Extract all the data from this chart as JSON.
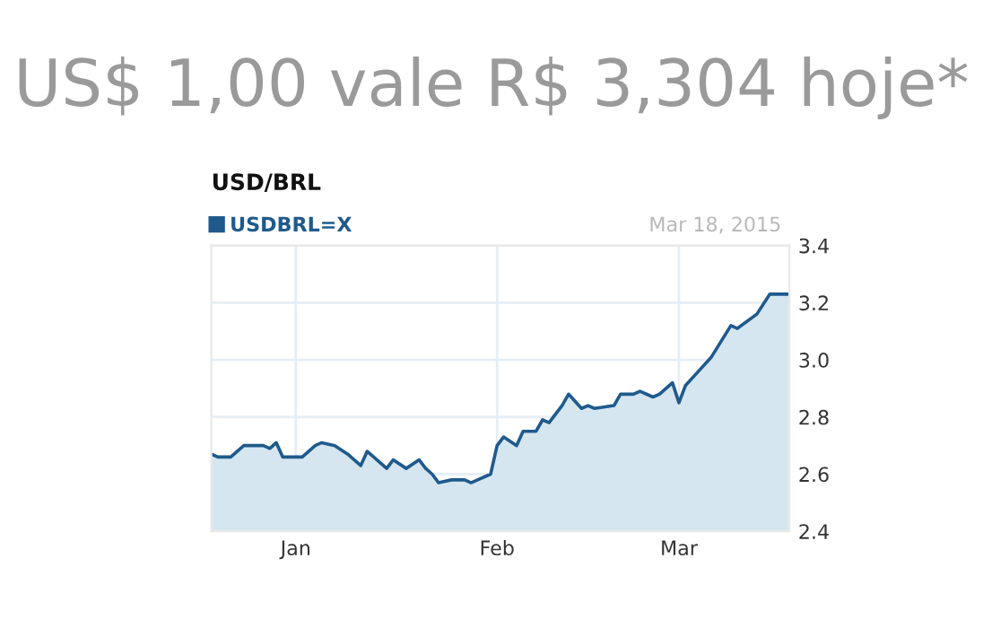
{
  "chart_data": {
    "type": "area",
    "title": "US$ 1,00 vale R$ 3,304 hoje*",
    "subtitle": "USD/BRL",
    "annotations": [
      "Mar 18, 2015"
    ],
    "x": [
      "2014-12-19",
      "2014-12-20",
      "2014-12-22",
      "2014-12-24",
      "2014-12-26",
      "2014-12-27",
      "2014-12-28",
      "2014-12-29",
      "2014-12-30",
      "2015-01-02",
      "2015-01-04",
      "2015-01-05",
      "2015-01-07",
      "2015-01-09",
      "2015-01-11",
      "2015-01-12",
      "2015-01-15",
      "2015-01-16",
      "2015-01-18",
      "2015-01-20",
      "2015-01-21",
      "2015-01-22",
      "2015-01-23",
      "2015-01-25",
      "2015-01-27",
      "2015-01-28",
      "2015-01-29",
      "2015-01-31",
      "2015-02-01",
      "2015-02-02",
      "2015-02-04",
      "2015-02-05",
      "2015-02-07",
      "2015-02-08",
      "2015-02-09",
      "2015-02-11",
      "2015-02-12",
      "2015-02-14",
      "2015-02-15",
      "2015-02-16",
      "2015-02-19",
      "2015-02-20",
      "2015-02-22",
      "2015-02-23",
      "2015-02-25",
      "2015-02-26",
      "2015-02-28",
      "2015-03-01",
      "2015-03-02",
      "2015-03-04",
      "2015-03-06",
      "2015-03-09",
      "2015-03-10",
      "2015-03-13",
      "2015-03-15",
      "2015-03-18"
    ],
    "series": [
      {
        "name": "USDBRL=X",
        "color": "#1f5a8c",
        "values": [
          2.67,
          2.66,
          2.66,
          2.7,
          2.7,
          2.7,
          2.69,
          2.71,
          2.66,
          2.66,
          2.7,
          2.71,
          2.7,
          2.67,
          2.63,
          2.68,
          2.62,
          2.65,
          2.62,
          2.65,
          2.62,
          2.6,
          2.57,
          2.58,
          2.58,
          2.57,
          2.58,
          2.6,
          2.7,
          2.73,
          2.7,
          2.75,
          2.75,
          2.79,
          2.78,
          2.84,
          2.88,
          2.83,
          2.84,
          2.83,
          2.84,
          2.88,
          2.88,
          2.89,
          2.87,
          2.88,
          2.92,
          2.85,
          2.91,
          2.96,
          3.01,
          3.12,
          3.11,
          3.16,
          3.23,
          3.23
        ]
      }
    ],
    "xlim": [
      "2014-12-19",
      "2015-03-18"
    ],
    "xticks": [
      {
        "value": "2015-01-01",
        "label": "Jan"
      },
      {
        "value": "2015-02-01",
        "label": "Feb"
      },
      {
        "value": "2015-03-01",
        "label": "Mar"
      }
    ],
    "ylim": [
      2.4,
      3.4
    ],
    "yticks": [
      2.4,
      2.6,
      2.8,
      {
        "value": 3.0,
        "label": "3.0"
      },
      3.2,
      3.4
    ],
    "grid": true,
    "legend": "top left"
  }
}
